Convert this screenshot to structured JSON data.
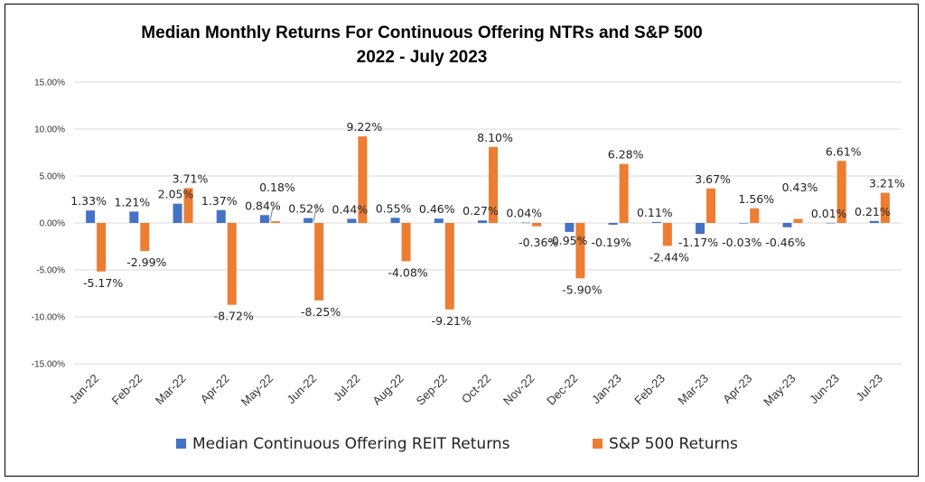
{
  "chart_data": {
    "type": "bar",
    "title_lines": [
      "Median Monthly Returns For Continuous Offering NTRs and S&P 500",
      "2022 - July 2023"
    ],
    "categories": [
      "Jan-22",
      "Feb-22",
      "Mar-22",
      "Apr-22",
      "May-22",
      "Jun-22",
      "Jul-22",
      "Aug-22",
      "Sep-22",
      "Oct-22",
      "Nov-22",
      "Dec-22",
      "Jan-23",
      "Feb-23",
      "Mar-23",
      "Apr-23",
      "May-23",
      "Jun-23",
      "Jul-23"
    ],
    "series": [
      {
        "name": "Median Continuous Offering REIT Returns",
        "color": "#4472C4",
        "values": [
          1.33,
          1.21,
          2.05,
          1.37,
          0.84,
          0.52,
          0.44,
          0.55,
          0.46,
          0.27,
          0.04,
          -0.95,
          -0.19,
          0.11,
          -1.17,
          -0.03,
          -0.46,
          0.01,
          0.21
        ],
        "labels": [
          "1.33%",
          "1.21%",
          "2.05%",
          "1.37%",
          "0.84%",
          "0.52%",
          "0.44%",
          "0.55%",
          "0.46%",
          "0.27%",
          "0.04%",
          "-0.95%",
          "-0.19%",
          "0.11%",
          "-1.17%",
          "-0.03%",
          "-0.46%",
          "0.01%",
          "0.21%"
        ]
      },
      {
        "name": "S&P 500 Returns",
        "color": "#ED7D31",
        "values": [
          -5.17,
          -2.99,
          3.71,
          -8.72,
          0.18,
          -8.25,
          9.22,
          -4.08,
          -9.21,
          8.1,
          -0.36,
          -5.9,
          6.28,
          -2.44,
          3.67,
          1.56,
          0.43,
          6.61,
          3.21
        ],
        "labels": [
          "-5.17%",
          "-2.99%",
          "3.71%",
          "-8.72%",
          "0.18%",
          "-8.25%",
          "9.22%",
          "-4.08%",
          "-9.21%",
          "8.10%",
          "-0.36%",
          "-5.90%",
          "6.28%",
          "-2.44%",
          "3.67%",
          "1.56%",
          "0.43%",
          "6.61%",
          "3.21%"
        ]
      }
    ],
    "y_ticks": [
      15,
      10,
      5,
      0,
      -5,
      -10,
      -15
    ],
    "y_tick_labels": [
      "15.00%",
      "10.00%",
      "5.00%",
      "0.00%",
      "-5.00%",
      "-10.00%",
      "-15.00%"
    ],
    "ylim": [
      -15,
      15
    ],
    "grid": true,
    "legend": "bottom"
  }
}
